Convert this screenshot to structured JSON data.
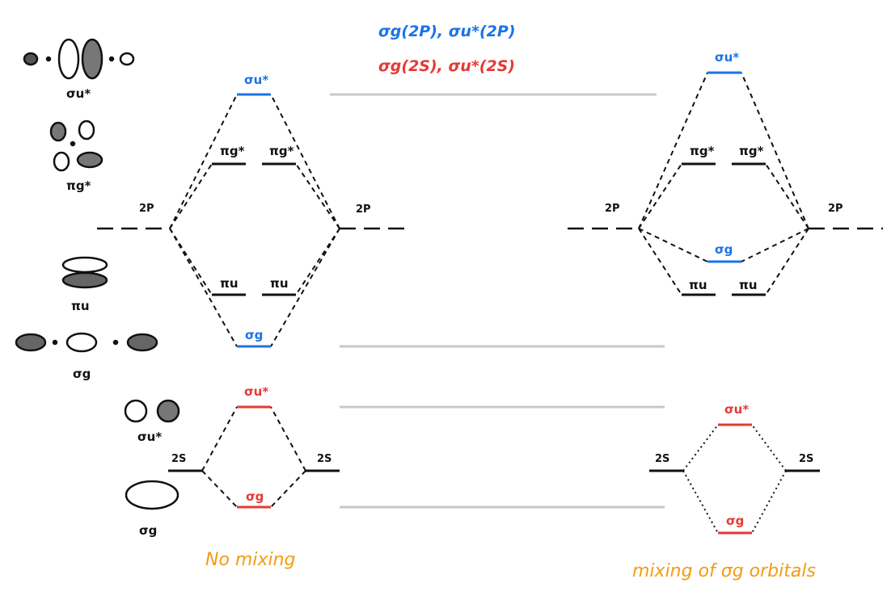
{
  "colors": {
    "ink": "#111111",
    "blue": "#1a73e8",
    "red": "#e53935",
    "orange": "#f39c12",
    "gray": "#c8c8c8"
  },
  "header": {
    "line_blue": "σg(2P), σu*(2P)",
    "line_red": "σg(2S), σu*(2S)"
  },
  "left_icons": {
    "sigma_u_star": "σu*",
    "pi_g_star": "πg*",
    "pi_u": "πu",
    "sigma_g": "σg",
    "sigma_u_star_2s": "σu*",
    "sigma_g_2s": "σg"
  },
  "left_diagram": {
    "atom_2p_left": "2P",
    "atom_2p_right": "2P",
    "atom_2s_left": "2S",
    "atom_2s_right": "2S",
    "sigma_u_star_2p": "σu*",
    "pi_g_star_a": "πg*",
    "pi_g_star_b": "πg*",
    "pi_u_a": "πu",
    "pi_u_b": "πu",
    "sigma_g_2p": "σg",
    "sigma_u_star_2s": "σu*",
    "sigma_g_2s": "σg",
    "caption": "No mixing"
  },
  "right_diagram": {
    "atom_2p_left": "2P",
    "atom_2p_right": "2P",
    "atom_2s_left": "2S",
    "atom_2s_right": "2S",
    "sigma_u_star_2p": "σu*",
    "pi_g_star_a": "πg*",
    "pi_g_star_b": "πg*",
    "sigma_g_2p": "σg",
    "pi_u_a": "πu",
    "pi_u_b": "πu",
    "sigma_u_star_2s": "σu*",
    "sigma_g_2s": "σg",
    "caption": "mixing of σg orbitals"
  }
}
